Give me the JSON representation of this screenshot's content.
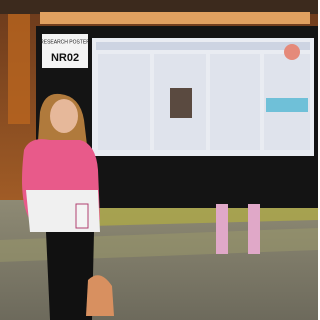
{
  "sign": {
    "label": "RESEARCH POSTER",
    "code": "NR02"
  }
}
